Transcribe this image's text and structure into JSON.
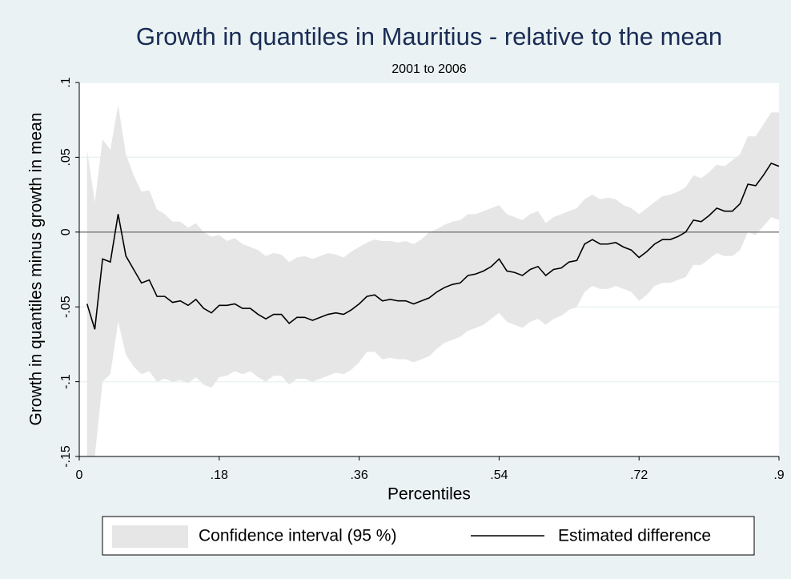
{
  "chart_data": {
    "type": "line_band",
    "title": "Growth in quantiles in Mauritius - relative to the mean",
    "subtitle": "2001 to 2006",
    "xlabel": "Percentiles",
    "ylabel": "Growth in quantiles minus growth in mean",
    "xlim": [
      0,
      0.9
    ],
    "ylim": [
      -0.15,
      0.1
    ],
    "xticks": [
      0,
      {
        "value": 0.18,
        "label": ".18"
      },
      {
        "value": 0.36,
        "label": ".36"
      },
      {
        "value": 0.54,
        "label": ".54"
      },
      {
        "value": 0.72,
        "label": ".72"
      },
      {
        "value": 0.9,
        "label": ".9"
      }
    ],
    "yticks": [
      {
        "value": 0.1,
        "label": ".1"
      },
      {
        "value": 0.05,
        "label": ".05"
      },
      0,
      {
        "value": -0.05,
        "label": "-.05"
      },
      {
        "value": -0.1,
        "label": "-.1"
      },
      {
        "value": -0.15,
        "label": "-.15"
      }
    ],
    "grid": true,
    "reference_line": 0,
    "x": [
      0.01,
      0.02,
      0.03,
      0.04,
      0.05,
      0.06,
      0.07,
      0.08,
      0.09,
      0.1,
      0.11,
      0.12,
      0.13,
      0.14,
      0.15,
      0.16,
      0.17,
      0.18,
      0.19,
      0.2,
      0.21,
      0.22,
      0.23,
      0.24,
      0.25,
      0.26,
      0.27,
      0.28,
      0.29,
      0.3,
      0.31,
      0.32,
      0.33,
      0.34,
      0.35,
      0.36,
      0.37,
      0.38,
      0.39,
      0.4,
      0.41,
      0.42,
      0.43,
      0.44,
      0.45,
      0.46,
      0.47,
      0.48,
      0.49,
      0.5,
      0.51,
      0.52,
      0.53,
      0.54,
      0.55,
      0.56,
      0.57,
      0.58,
      0.59,
      0.6,
      0.61,
      0.62,
      0.63,
      0.64,
      0.65,
      0.66,
      0.67,
      0.68,
      0.69,
      0.7,
      0.71,
      0.72,
      0.73,
      0.74,
      0.75,
      0.76,
      0.77,
      0.78,
      0.79,
      0.8,
      0.81,
      0.82,
      0.83,
      0.84,
      0.85,
      0.86,
      0.87,
      0.88,
      0.89,
      0.9
    ],
    "series": [
      {
        "name": "Confidence interval (95 %)",
        "color": "#e6e6e6",
        "upper": [
          0.055,
          0.02,
          0.062,
          0.055,
          0.085,
          0.052,
          0.038,
          0.027,
          0.028,
          0.015,
          0.012,
          0.007,
          0.007,
          0.003,
          0.006,
          0.0,
          -0.003,
          -0.002,
          -0.006,
          -0.004,
          -0.008,
          -0.01,
          -0.012,
          -0.016,
          -0.014,
          -0.015,
          -0.02,
          -0.017,
          -0.016,
          -0.018,
          -0.016,
          -0.014,
          -0.015,
          -0.017,
          -0.013,
          -0.01,
          -0.007,
          -0.005,
          -0.006,
          -0.006,
          -0.007,
          -0.006,
          -0.008,
          -0.005,
          0.0,
          0.002,
          0.005,
          0.007,
          0.008,
          0.012,
          0.012,
          0.014,
          0.016,
          0.018,
          0.012,
          0.01,
          0.008,
          0.012,
          0.014,
          0.006,
          0.01,
          0.012,
          0.014,
          0.016,
          0.022,
          0.025,
          0.022,
          0.023,
          0.022,
          0.018,
          0.016,
          0.012,
          0.016,
          0.02,
          0.024,
          0.025,
          0.027,
          0.03,
          0.038,
          0.036,
          0.04,
          0.045,
          0.044,
          0.048,
          0.052,
          0.064,
          0.064,
          0.072,
          0.08,
          0.08
        ],
        "lower": [
          -0.15,
          -0.15,
          -0.1,
          -0.095,
          -0.06,
          -0.082,
          -0.09,
          -0.095,
          -0.093,
          -0.1,
          -0.098,
          -0.1,
          -0.099,
          -0.101,
          -0.097,
          -0.102,
          -0.104,
          -0.097,
          -0.096,
          -0.093,
          -0.095,
          -0.093,
          -0.097,
          -0.1,
          -0.096,
          -0.096,
          -0.102,
          -0.098,
          -0.098,
          -0.1,
          -0.098,
          -0.096,
          -0.094,
          -0.095,
          -0.092,
          -0.087,
          -0.08,
          -0.08,
          -0.085,
          -0.084,
          -0.085,
          -0.085,
          -0.087,
          -0.085,
          -0.083,
          -0.078,
          -0.074,
          -0.072,
          -0.07,
          -0.066,
          -0.064,
          -0.062,
          -0.058,
          -0.054,
          -0.06,
          -0.062,
          -0.064,
          -0.06,
          -0.058,
          -0.062,
          -0.058,
          -0.056,
          -0.052,
          -0.05,
          -0.04,
          -0.036,
          -0.038,
          -0.038,
          -0.036,
          -0.038,
          -0.04,
          -0.046,
          -0.042,
          -0.036,
          -0.034,
          -0.034,
          -0.032,
          -0.03,
          -0.022,
          -0.022,
          -0.018,
          -0.014,
          -0.016,
          -0.016,
          -0.012,
          0.0,
          -0.002,
          0.004,
          0.01,
          0.008
        ]
      },
      {
        "name": "Estimated difference",
        "color": "#000000",
        "values": [
          -0.048,
          -0.065,
          -0.018,
          -0.02,
          0.012,
          -0.016,
          -0.025,
          -0.034,
          -0.032,
          -0.043,
          -0.043,
          -0.047,
          -0.046,
          -0.049,
          -0.045,
          -0.051,
          -0.054,
          -0.049,
          -0.049,
          -0.048,
          -0.051,
          -0.051,
          -0.055,
          -0.058,
          -0.055,
          -0.055,
          -0.061,
          -0.057,
          -0.057,
          -0.059,
          -0.057,
          -0.055,
          -0.054,
          -0.055,
          -0.052,
          -0.048,
          -0.043,
          -0.042,
          -0.046,
          -0.045,
          -0.046,
          -0.046,
          -0.048,
          -0.046,
          -0.044,
          -0.04,
          -0.037,
          -0.035,
          -0.034,
          -0.029,
          -0.028,
          -0.026,
          -0.023,
          -0.018,
          -0.026,
          -0.027,
          -0.029,
          -0.025,
          -0.023,
          -0.029,
          -0.025,
          -0.024,
          -0.02,
          -0.019,
          -0.008,
          -0.005,
          -0.008,
          -0.008,
          -0.007,
          -0.01,
          -0.012,
          -0.017,
          -0.013,
          -0.008,
          -0.005,
          -0.005,
          -0.003,
          0.0,
          0.008,
          0.007,
          0.011,
          0.016,
          0.014,
          0.014,
          0.019,
          0.032,
          0.031,
          0.038,
          0.046,
          0.044
        ]
      }
    ]
  }
}
